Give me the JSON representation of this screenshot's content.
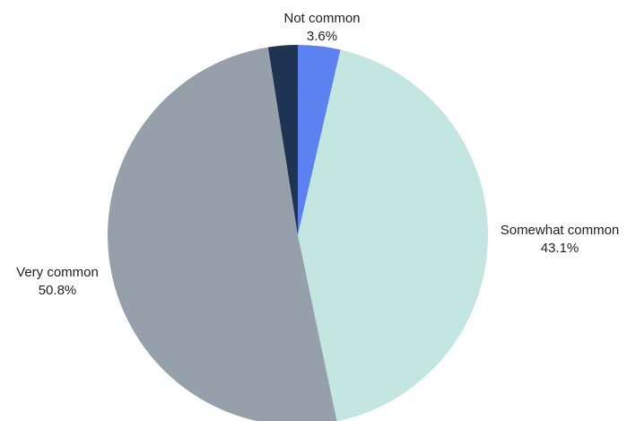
{
  "chart_data": {
    "type": "pie",
    "slices": [
      {
        "label": "Not common",
        "value": 3.6,
        "value_label": "3.6%",
        "color": "#5b82f0"
      },
      {
        "label": "Somewhat common",
        "value": 43.1,
        "value_label": "43.1%",
        "color": "#c3e6e1"
      },
      {
        "label": "Very common",
        "value": 50.8,
        "value_label": "50.8%",
        "color": "#95a0aa"
      },
      {
        "label": "",
        "value": 2.5,
        "value_label": "",
        "color": "#1f3352"
      }
    ],
    "start": "12 o'clock",
    "direction": "clockwise"
  }
}
